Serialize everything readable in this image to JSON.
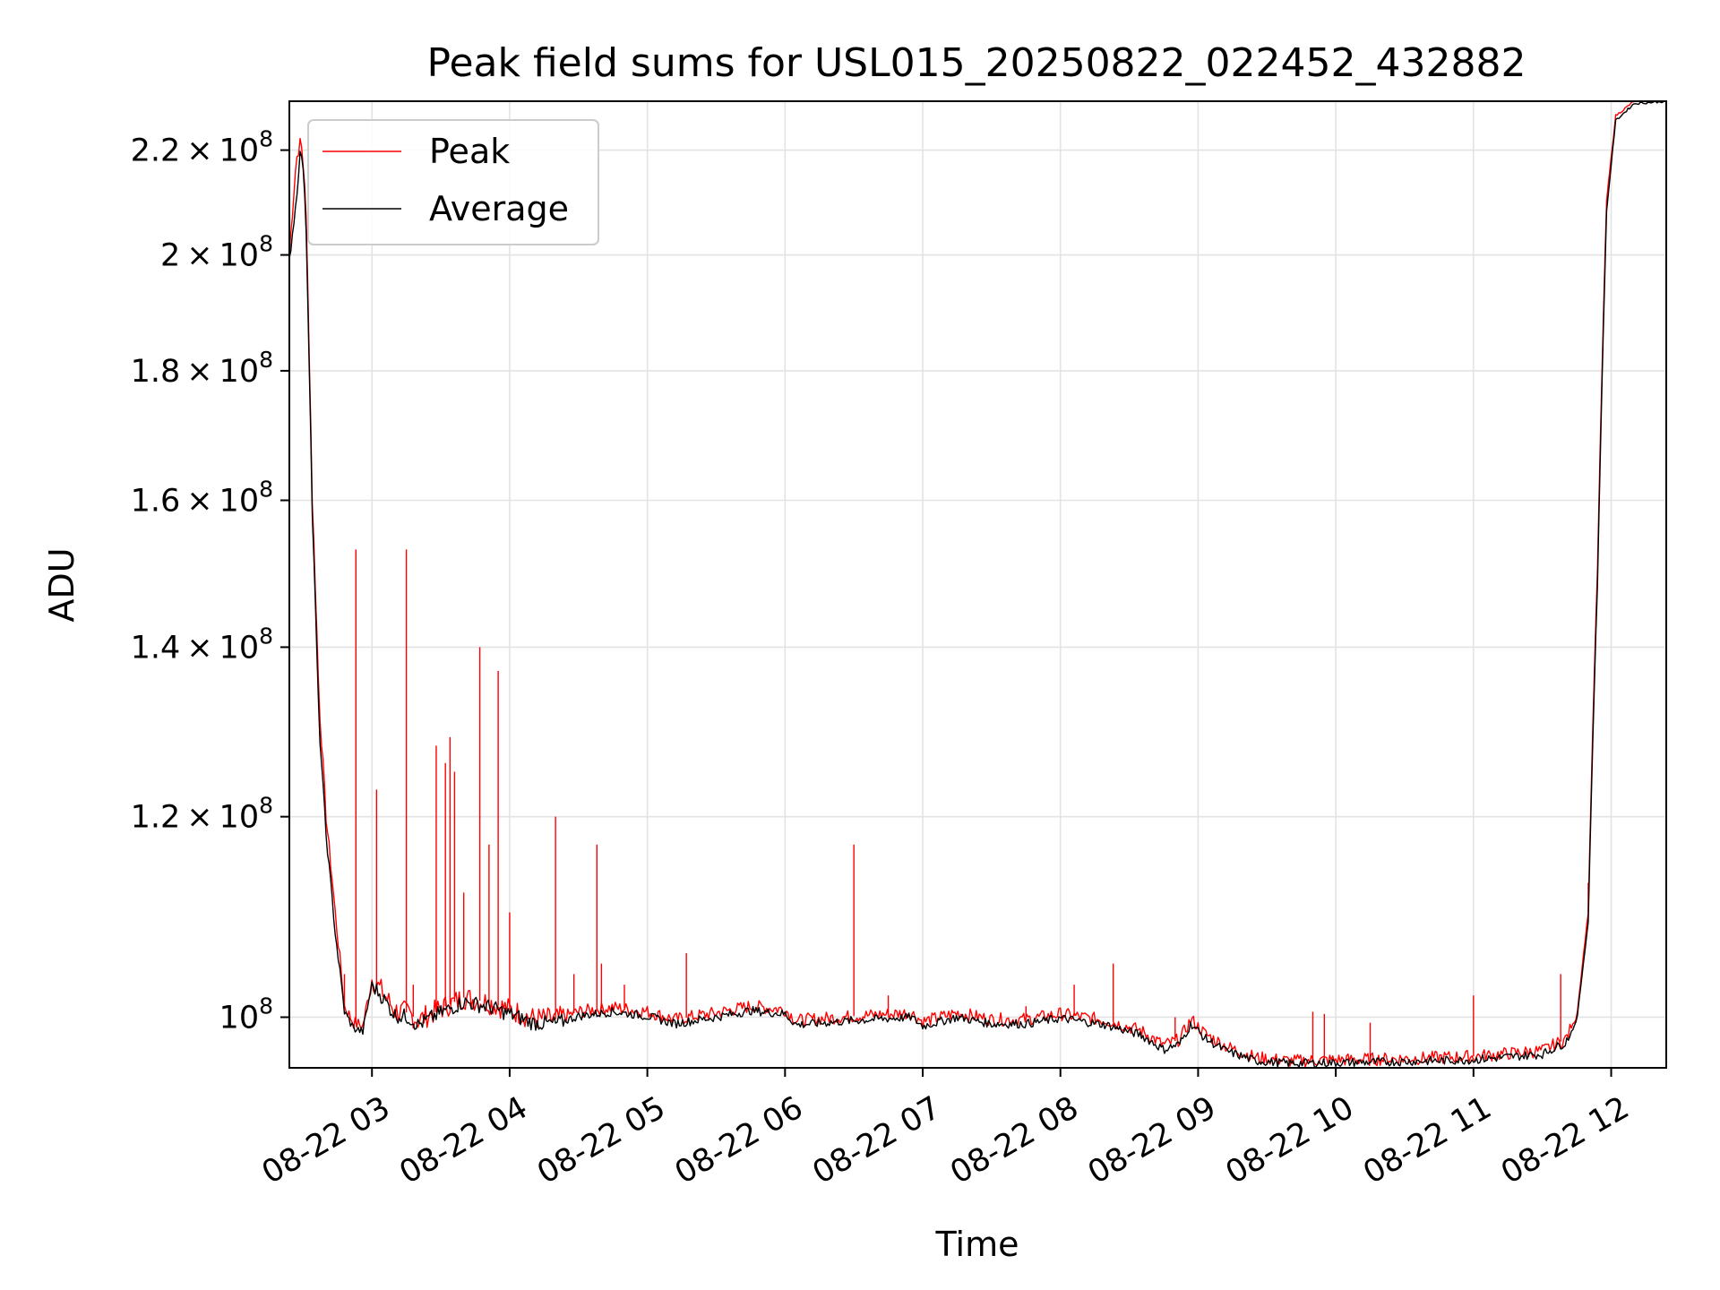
{
  "chart_data": {
    "type": "line",
    "title": "Peak field sums for USL015_20250822_022452_432882",
    "xlabel": "Time",
    "ylabel": "ADU",
    "yscale": "log",
    "grid": true,
    "legend_position": "upper-left",
    "xlim": [
      "2025-08-22 02:24",
      "2025-08-22 12:24"
    ],
    "ylim": [
      95500000,
      230000000
    ],
    "x_ticks": [
      {
        "value": "2025-08-22 03:00",
        "label": "08-22 03"
      },
      {
        "value": "2025-08-22 04:00",
        "label": "08-22 04"
      },
      {
        "value": "2025-08-22 05:00",
        "label": "08-22 05"
      },
      {
        "value": "2025-08-22 06:00",
        "label": "08-22 06"
      },
      {
        "value": "2025-08-22 07:00",
        "label": "08-22 07"
      },
      {
        "value": "2025-08-22 08:00",
        "label": "08-22 08"
      },
      {
        "value": "2025-08-22 09:00",
        "label": "08-22 09"
      },
      {
        "value": "2025-08-22 10:00",
        "label": "08-22 10"
      },
      {
        "value": "2025-08-22 11:00",
        "label": "08-22 11"
      },
      {
        "value": "2025-08-22 12:00",
        "label": "08-22 12"
      }
    ],
    "y_ticks": [
      {
        "value": 100000000,
        "mantissa": "",
        "exponent": "8"
      },
      {
        "value": 120000000,
        "mantissa": "1.2",
        "exponent": "8"
      },
      {
        "value": 140000000,
        "mantissa": "1.4",
        "exponent": "8"
      },
      {
        "value": 160000000,
        "mantissa": "1.6",
        "exponent": "8"
      },
      {
        "value": 180000000,
        "mantissa": "1.8",
        "exponent": "8"
      },
      {
        "value": 200000000,
        "mantissa": "2",
        "exponent": "8"
      },
      {
        "value": 220000000,
        "mantissa": "2.2",
        "exponent": "8"
      }
    ],
    "series": [
      {
        "name": "Peak",
        "color": "#ff0000",
        "points": [
          [
            "2025-08-22 02:24",
            200000000
          ],
          [
            "2025-08-22 02:27",
            218000000
          ],
          [
            "2025-08-22 02:29",
            222000000
          ],
          [
            "2025-08-22 02:31",
            212000000
          ],
          [
            "2025-08-22 02:34",
            160000000
          ],
          [
            "2025-08-22 02:37",
            133000000
          ],
          [
            "2025-08-22 02:40",
            120000000
          ],
          [
            "2025-08-22 02:44",
            110000000
          ],
          [
            "2025-08-22 02:48",
            101000000
          ],
          [
            "2025-08-22 02:52",
            99500000
          ],
          [
            "2025-08-22 02:56",
            99200000
          ],
          [
            "2025-08-22 03:00",
            103500000
          ],
          [
            "2025-08-22 03:04",
            102500000
          ],
          [
            "2025-08-22 03:10",
            100600000
          ],
          [
            "2025-08-22 03:16",
            100400000
          ],
          [
            "2025-08-22 03:20",
            99700000
          ],
          [
            "2025-08-22 03:30",
            100800000
          ],
          [
            "2025-08-22 03:40",
            101800000
          ],
          [
            "2025-08-22 03:50",
            101400000
          ],
          [
            "2025-08-22 04:00",
            100700000
          ],
          [
            "2025-08-22 04:10",
            99900000
          ],
          [
            "2025-08-22 04:20",
            99800000
          ],
          [
            "2025-08-22 04:30",
            100500000
          ],
          [
            "2025-08-22 04:45",
            100900000
          ],
          [
            "2025-08-22 05:00",
            100500000
          ],
          [
            "2025-08-22 05:12",
            99800000
          ],
          [
            "2025-08-22 05:30",
            100400000
          ],
          [
            "2025-08-22 05:45",
            101000000
          ],
          [
            "2025-08-22 06:00",
            100700000
          ],
          [
            "2025-08-22 06:05",
            99700000
          ],
          [
            "2025-08-22 06:30",
            100100000
          ],
          [
            "2025-08-22 06:55",
            100400000
          ],
          [
            "2025-08-22 07:00",
            99600000
          ],
          [
            "2025-08-22 07:15",
            100400000
          ],
          [
            "2025-08-22 07:30",
            99800000
          ],
          [
            "2025-08-22 07:45",
            99800000
          ],
          [
            "2025-08-22 08:00",
            100300000
          ],
          [
            "2025-08-22 08:20",
            99700000
          ],
          [
            "2025-08-22 08:35",
            98800000
          ],
          [
            "2025-08-22 08:45",
            97500000
          ],
          [
            "2025-08-22 08:52",
            98000000
          ],
          [
            "2025-08-22 08:57",
            99800000
          ],
          [
            "2025-08-22 09:03",
            98500000
          ],
          [
            "2025-08-22 09:12",
            97400000
          ],
          [
            "2025-08-22 09:25",
            96400000
          ],
          [
            "2025-08-22 09:40",
            96100000
          ],
          [
            "2025-08-22 10:00",
            96200000
          ],
          [
            "2025-08-22 10:30",
            96300000
          ],
          [
            "2025-08-22 11:00",
            96500000
          ],
          [
            "2025-08-22 11:30",
            97000000
          ],
          [
            "2025-08-22 11:40",
            98000000
          ],
          [
            "2025-08-22 11:45",
            100000000
          ],
          [
            "2025-08-22 11:50",
            110000000
          ],
          [
            "2025-08-22 11:54",
            150000000
          ],
          [
            "2025-08-22 11:58",
            210000000
          ],
          [
            "2025-08-22 12:02",
            227000000
          ],
          [
            "2025-08-22 12:10",
            230000000
          ],
          [
            "2025-08-22 12:24",
            230000000
          ]
        ],
        "spikes": [
          [
            "2025-08-22 02:37",
            132000000
          ],
          [
            "2025-08-22 02:48",
            104000000
          ],
          [
            "2025-08-22 02:53",
            153000000
          ],
          [
            "2025-08-22 03:02",
            123000000
          ],
          [
            "2025-08-22 03:15",
            153000000
          ],
          [
            "2025-08-22 03:18",
            103000000
          ],
          [
            "2025-08-22 03:28",
            128000000
          ],
          [
            "2025-08-22 03:32",
            126000000
          ],
          [
            "2025-08-22 03:34",
            129000000
          ],
          [
            "2025-08-22 03:36",
            125000000
          ],
          [
            "2025-08-22 03:40",
            112000000
          ],
          [
            "2025-08-22 03:47",
            140000000
          ],
          [
            "2025-08-22 03:51",
            117000000
          ],
          [
            "2025-08-22 03:55",
            137000000
          ],
          [
            "2025-08-22 04:00",
            110000000
          ],
          [
            "2025-08-22 04:20",
            120000000
          ],
          [
            "2025-08-22 04:28",
            104000000
          ],
          [
            "2025-08-22 04:38",
            117000000
          ],
          [
            "2025-08-22 04:40",
            105000000
          ],
          [
            "2025-08-22 04:50",
            103000000
          ],
          [
            "2025-08-22 05:17",
            106000000
          ],
          [
            "2025-08-22 06:30",
            117000000
          ],
          [
            "2025-08-22 06:45",
            102000000
          ],
          [
            "2025-08-22 07:45",
            101000000
          ],
          [
            "2025-08-22 08:06",
            103000000
          ],
          [
            "2025-08-22 08:23",
            105000000
          ],
          [
            "2025-08-22 08:50",
            100000000
          ],
          [
            "2025-08-22 09:50",
            100500000
          ],
          [
            "2025-08-22 09:55",
            100300000
          ],
          [
            "2025-08-22 10:15",
            99500000
          ],
          [
            "2025-08-22 11:00",
            102000000
          ],
          [
            "2025-08-22 11:38",
            104000000
          ],
          [
            "2025-08-22 11:50",
            113000000
          ]
        ]
      },
      {
        "name": "Average",
        "color": "#000000",
        "points": [
          [
            "2025-08-22 02:24",
            199000000
          ],
          [
            "2025-08-22 02:27",
            210000000
          ],
          [
            "2025-08-22 02:29",
            221000000
          ],
          [
            "2025-08-22 02:31",
            210000000
          ],
          [
            "2025-08-22 02:34",
            158000000
          ],
          [
            "2025-08-22 02:37",
            130000000
          ],
          [
            "2025-08-22 02:40",
            118000000
          ],
          [
            "2025-08-22 02:44",
            108000000
          ],
          [
            "2025-08-22 02:48",
            100500000
          ],
          [
            "2025-08-22 02:52",
            99000000
          ],
          [
            "2025-08-22 02:56",
            98700000
          ],
          [
            "2025-08-22 03:00",
            103000000
          ],
          [
            "2025-08-22 03:04",
            102000000
          ],
          [
            "2025-08-22 03:10",
            100200000
          ],
          [
            "2025-08-22 03:16",
            100000000
          ],
          [
            "2025-08-22 03:20",
            99300000
          ],
          [
            "2025-08-22 03:30",
            100400000
          ],
          [
            "2025-08-22 03:40",
            101400000
          ],
          [
            "2025-08-22 03:50",
            101000000
          ],
          [
            "2025-08-22 04:00",
            100300000
          ],
          [
            "2025-08-22 04:10",
            99500000
          ],
          [
            "2025-08-22 04:20",
            99400000
          ],
          [
            "2025-08-22 04:30",
            100100000
          ],
          [
            "2025-08-22 04:45",
            100500000
          ],
          [
            "2025-08-22 05:00",
            100100000
          ],
          [
            "2025-08-22 05:12",
            99400000
          ],
          [
            "2025-08-22 05:30",
            100000000
          ],
          [
            "2025-08-22 05:45",
            100600000
          ],
          [
            "2025-08-22 06:00",
            100300000
          ],
          [
            "2025-08-22 06:05",
            99300000
          ],
          [
            "2025-08-22 06:30",
            99700000
          ],
          [
            "2025-08-22 06:55",
            100000000
          ],
          [
            "2025-08-22 07:00",
            99200000
          ],
          [
            "2025-08-22 07:15",
            100000000
          ],
          [
            "2025-08-22 07:30",
            99400000
          ],
          [
            "2025-08-22 07:45",
            99400000
          ],
          [
            "2025-08-22 08:00",
            99900000
          ],
          [
            "2025-08-22 08:20",
            99300000
          ],
          [
            "2025-08-22 08:35",
            98400000
          ],
          [
            "2025-08-22 08:45",
            97100000
          ],
          [
            "2025-08-22 08:52",
            97600000
          ],
          [
            "2025-08-22 08:57",
            99400000
          ],
          [
            "2025-08-22 09:03",
            98100000
          ],
          [
            "2025-08-22 09:12",
            97000000
          ],
          [
            "2025-08-22 09:25",
            96100000
          ],
          [
            "2025-08-22 09:40",
            95900000
          ],
          [
            "2025-08-22 10:00",
            95950000
          ],
          [
            "2025-08-22 10:30",
            96050000
          ],
          [
            "2025-08-22 11:00",
            96200000
          ],
          [
            "2025-08-22 11:30",
            96700000
          ],
          [
            "2025-08-22 11:40",
            97700000
          ],
          [
            "2025-08-22 11:45",
            99600000
          ],
          [
            "2025-08-22 11:50",
            109000000
          ],
          [
            "2025-08-22 11:54",
            148000000
          ],
          [
            "2025-08-22 11:58",
            208000000
          ],
          [
            "2025-08-22 12:02",
            226000000
          ],
          [
            "2025-08-22 12:10",
            229500000
          ],
          [
            "2025-08-22 12:24",
            230000000
          ]
        ]
      }
    ]
  }
}
